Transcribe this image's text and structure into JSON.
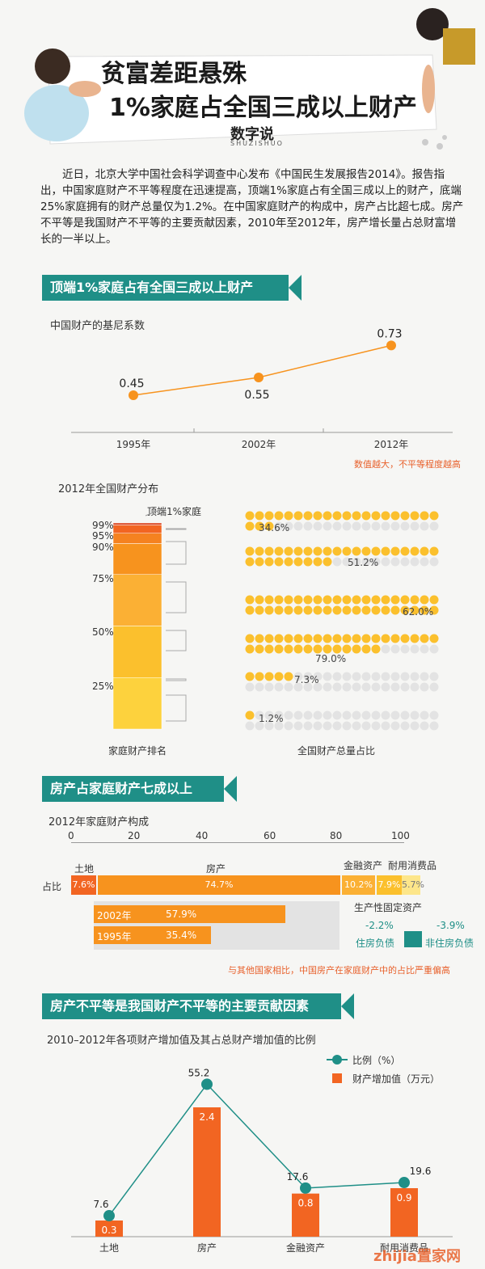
{
  "header": {
    "title_line1": "贫富差距悬殊",
    "title_line2": "1%家庭占全国三成以上财产",
    "logo": "数字说",
    "logo_sub": "SHUZISHUO"
  },
  "intro": "近日，北京大学中国社会科学调查中心发布《中国民生发展报告2014》。报告指出，中国家庭财产不平等程度在迅速提高，顶端1%家庭占有全国三成以上的财产，底端25%家庭拥有的财产总量仅为1.2%。在中国家庭财产的构成中，房产占比超七成。房产不平等是我国财产不平等的主要贡献因素，2010年至2012年，房产增长量占总财富增长的一半以上。",
  "section1": {
    "banner": "顶端1%家庭占有全国三成以上财产",
    "gini_title": "中国财产的基尼系数",
    "note": "数值越大，不平等程度越高"
  },
  "section2": {
    "title": "2012年全国财产分布",
    "top_label": "顶端1%家庭",
    "rank_labels": [
      "99%",
      "95%",
      "90%",
      "75%",
      "50%",
      "25%"
    ],
    "axis_left": "家庭财产排名",
    "axis_right": "全国财产总量占比",
    "shares": [
      "34.6%",
      "51.2%",
      "62.0%",
      "79.0%",
      "7.3%",
      "1.2%"
    ]
  },
  "section3": {
    "banner": "房产占家庭财产七成以上",
    "title": "2012年家庭财产构成",
    "ticks": [
      "0",
      "20",
      "40",
      "60",
      "80",
      "100"
    ],
    "row_label": "占比",
    "cat_land": "土地",
    "cat_house": "房产",
    "cat_fin": "金融资产",
    "cat_durable": "耐用消费品",
    "cat_prod": "生产性固定资产",
    "v_land": "7.6%",
    "v_house": "74.7%",
    "v_fin": "10.2%",
    "v_durable": "7.9%",
    "v_prod": "5.7%",
    "y2002": "2002年",
    "v2002": "57.9%",
    "y1995": "1995年",
    "v1995": "35.4%",
    "debt_house": "-2.2%",
    "debt_house_label": "住房负债",
    "debt_other": "-3.9%",
    "debt_other_label": "非住房负债",
    "note": "与其他国家相比，中国房产在家庭财产中的占比严重偏高"
  },
  "section4": {
    "banner": "房产不平等是我国财产不平等的主要贡献因素",
    "title": "2010–2012年各项财产增加值及其占总财产增加值的比例",
    "legend_line": "比例（%）",
    "legend_bar": "财产增加值（万元）"
  },
  "watermark": "zhijia置家网",
  "colors": {
    "teal": "#1f8f87",
    "orange": "#f7931e",
    "deep_orange": "#f26522",
    "yellow": "#fbc02d"
  },
  "chart_data": [
    {
      "type": "line",
      "title": "中国财产的基尼系数",
      "categories": [
        "1995年",
        "2002年",
        "2012年"
      ],
      "values": [
        0.45,
        0.55,
        0.73
      ],
      "ylim": [
        0.3,
        0.8
      ]
    },
    {
      "type": "bar",
      "title": "2010–2012年各项财产增加值及其占总财产增加值的比例",
      "categories": [
        "土地",
        "房产",
        "金融资产",
        "耐用消费品"
      ],
      "series": [
        {
          "name": "财产增加值（万元）",
          "values": [
            0.3,
            2.4,
            0.8,
            0.9
          ]
        },
        {
          "name": "比例（%）",
          "values": [
            7.6,
            55.2,
            17.6,
            19.6
          ]
        }
      ],
      "ylim_bar": [
        0,
        3
      ],
      "ylim_line": [
        0,
        60
      ]
    }
  ]
}
